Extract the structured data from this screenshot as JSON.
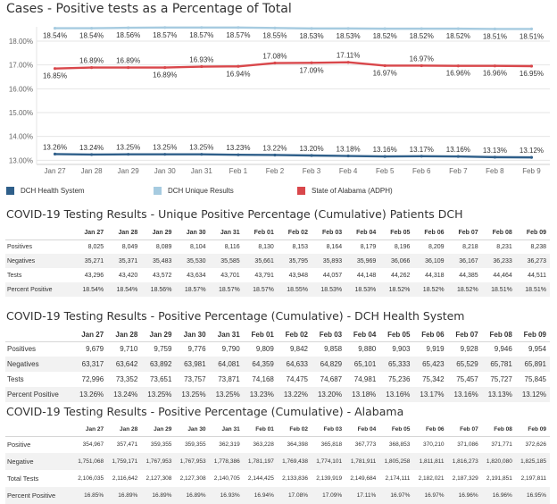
{
  "chart_data": {
    "type": "line",
    "title": "Cases - Positive tests as a Percentage of Total",
    "categories": [
      "Jan 27",
      "Jan 28",
      "Jan 29",
      "Jan 30",
      "Jan 31",
      "Feb 1",
      "Feb 2",
      "Feb 3",
      "Feb 4",
      "Feb 5",
      "Feb 6",
      "Feb 7",
      "Feb 8",
      "Feb 9"
    ],
    "y_ticks": [
      "18.00%",
      "17.00%",
      "16.00%",
      "15.00%",
      "14.00%",
      "13.00%"
    ],
    "ylim": [
      12.9,
      18.6
    ],
    "grid": true,
    "legend_position": "bottom",
    "series": [
      {
        "name": "DCH Health System",
        "color": "#2f5f8a",
        "values": [
          13.26,
          13.24,
          13.25,
          13.25,
          13.25,
          13.23,
          13.22,
          13.2,
          13.18,
          13.16,
          13.17,
          13.16,
          13.13,
          13.12
        ],
        "labels": [
          "13.26%",
          "13.24%",
          "13.25%",
          "13.25%",
          "13.25%",
          "13.23%",
          "13.22%",
          "13.20%",
          "13.18%",
          "13.16%",
          "13.17%",
          "13.16%",
          "13.13%",
          "13.12%"
        ],
        "label_pos": [
          "above",
          "above",
          "above",
          "above",
          "above",
          "above",
          "above",
          "above",
          "above",
          "above",
          "above",
          "above",
          "above",
          "above"
        ]
      },
      {
        "name": "DCH Unique Results",
        "color": "#a6cbe0",
        "values": [
          18.54,
          18.54,
          18.56,
          18.57,
          18.57,
          18.57,
          18.55,
          18.53,
          18.53,
          18.52,
          18.52,
          18.52,
          18.51,
          18.51
        ],
        "labels": [
          "18.54%",
          "18.54%",
          "18.56%",
          "18.57%",
          "18.57%",
          "18.57%",
          "18.55%",
          "18.53%",
          "18.53%",
          "18.52%",
          "18.52%",
          "18.52%",
          "18.51%",
          "18.51%"
        ],
        "label_pos": [
          "below",
          "below",
          "below",
          "below",
          "below",
          "below",
          "below",
          "below",
          "below",
          "below",
          "below",
          "below",
          "below",
          "below"
        ]
      },
      {
        "name": "State of Alabama (ADPH)",
        "color": "#d9474b",
        "values": [
          16.85,
          16.89,
          16.89,
          16.89,
          16.93,
          16.94,
          17.08,
          17.09,
          17.11,
          16.97,
          16.97,
          16.96,
          16.96,
          16.95
        ],
        "labels": [
          "16.85%",
          "16.89%",
          "16.89%",
          "16.89%",
          "16.93%",
          "16.94%",
          "17.08%",
          "17.09%",
          "17.11%",
          "16.97%",
          "16.97%",
          "16.96%",
          "16.96%",
          "16.95%"
        ],
        "label_pos": [
          "below",
          "above",
          "above",
          "below",
          "above",
          "below",
          "above",
          "below",
          "above",
          "below",
          "above",
          "below",
          "below",
          "below"
        ]
      }
    ]
  },
  "tables": [
    {
      "title": "COVID-19 Testing Results - Unique Positive Percentage (Cumulative) Patients DCH",
      "headers": [
        "Jan 27",
        "Jan 28",
        "Jan 29",
        "Jan 30",
        "Jan 31",
        "Feb 01",
        "Feb 02",
        "Feb 03",
        "Feb 04",
        "Feb 05",
        "Feb 06",
        "Feb 07",
        "Feb 08",
        "Feb 09"
      ],
      "rows": [
        {
          "label": "Positives",
          "cells": [
            "8,025",
            "8,049",
            "8,089",
            "8,104",
            "8,116",
            "8,130",
            "8,153",
            "8,164",
            "8,179",
            "8,196",
            "8,209",
            "8,218",
            "8,231",
            "8,238"
          ]
        },
        {
          "label": "Negatives",
          "cells": [
            "35,271",
            "35,371",
            "35,483",
            "35,530",
            "35,585",
            "35,661",
            "35,795",
            "35,893",
            "35,969",
            "36,066",
            "36,109",
            "36,167",
            "36,233",
            "36,273"
          ]
        },
        {
          "label": "Tests",
          "cells": [
            "43,296",
            "43,420",
            "43,572",
            "43,634",
            "43,701",
            "43,791",
            "43,948",
            "44,057",
            "44,148",
            "44,262",
            "44,318",
            "44,385",
            "44,464",
            "44,511"
          ]
        },
        {
          "label": "Percent Positive",
          "cells": [
            "18.54%",
            "18.54%",
            "18.56%",
            "18.57%",
            "18.57%",
            "18.57%",
            "18.55%",
            "18.53%",
            "18.53%",
            "18.52%",
            "18.52%",
            "18.52%",
            "18.51%",
            "18.51%"
          ]
        }
      ]
    },
    {
      "title": "COVID-19 Testing Results - Positive Percentage (Cumulative) - DCH Health System",
      "headers": [
        "Jan 27",
        "Jan 28",
        "Jan 29",
        "Jan 30",
        "Jan 31",
        "Feb 01",
        "Feb 02",
        "Feb 03",
        "Feb 04",
        "Feb 05",
        "Feb 06",
        "Feb 07",
        "Feb 08",
        "Feb 09"
      ],
      "rows": [
        {
          "label": "Positives",
          "cells": [
            "9,679",
            "9,710",
            "9,759",
            "9,776",
            "9,790",
            "9,809",
            "9,842",
            "9,858",
            "9,880",
            "9,903",
            "9,919",
            "9,928",
            "9,946",
            "9,954"
          ]
        },
        {
          "label": "Negatives",
          "cells": [
            "63,317",
            "63,642",
            "63,892",
            "63,981",
            "64,081",
            "64,359",
            "64,633",
            "64,829",
            "65,101",
            "65,333",
            "65,423",
            "65,529",
            "65,781",
            "65,891"
          ]
        },
        {
          "label": "Tests",
          "cells": [
            "72,996",
            "73,352",
            "73,651",
            "73,757",
            "73,871",
            "74,168",
            "74,475",
            "74,687",
            "74,981",
            "75,236",
            "75,342",
            "75,457",
            "75,727",
            "75,845"
          ]
        },
        {
          "label": "Percent Positive",
          "cells": [
            "13.26%",
            "13.24%",
            "13.25%",
            "13.25%",
            "13.25%",
            "13.23%",
            "13.22%",
            "13.20%",
            "13.18%",
            "13.16%",
            "13.17%",
            "13.16%",
            "13.13%",
            "13.12%"
          ]
        }
      ]
    },
    {
      "title": "COVID-19 Testing Results - Positive Percentage (Cumulative) - Alabama",
      "headers": [
        "Jan 27",
        "Jan 28",
        "Jan 29",
        "Jan 30",
        "Jan 31",
        "Feb 01",
        "Feb 02",
        "Feb 03",
        "Feb 04",
        "Feb 05",
        "Feb 06",
        "Feb 07",
        "Feb 08",
        "Feb 09"
      ],
      "rows": [
        {
          "label": "Positive",
          "cells": [
            "354,967",
            "357,471",
            "359,355",
            "359,355",
            "362,319",
            "363,228",
            "364,398",
            "365,818",
            "367,773",
            "368,853",
            "370,210",
            "371,086",
            "371,771",
            "372,626"
          ]
        },
        {
          "label": "Negative",
          "cells": [
            "1,751,068",
            "1,759,171",
            "1,767,953",
            "1,767,953",
            "1,778,386",
            "1,781,197",
            "1,769,438",
            "1,774,101",
            "1,781,911",
            "1,805,258",
            "1,811,811",
            "1,816,273",
            "1,820,080",
            "1,825,185"
          ]
        },
        {
          "label": "Total Tests",
          "cells": [
            "2,106,035",
            "2,116,642",
            "2,127,308",
            "2,127,308",
            "2,140,705",
            "2,144,425",
            "2,133,836",
            "2,139,919",
            "2,149,684",
            "2,174,111",
            "2,182,021",
            "2,187,329",
            "2,191,851",
            "2,197,811"
          ]
        },
        {
          "label": "Percent Positive",
          "cells": [
            "16.85%",
            "16.89%",
            "16.89%",
            "16.89%",
            "16.93%",
            "16.94%",
            "17.08%",
            "17.09%",
            "17.11%",
            "16.97%",
            "16.97%",
            "16.96%",
            "16.96%",
            "16.95%"
          ]
        }
      ]
    }
  ]
}
